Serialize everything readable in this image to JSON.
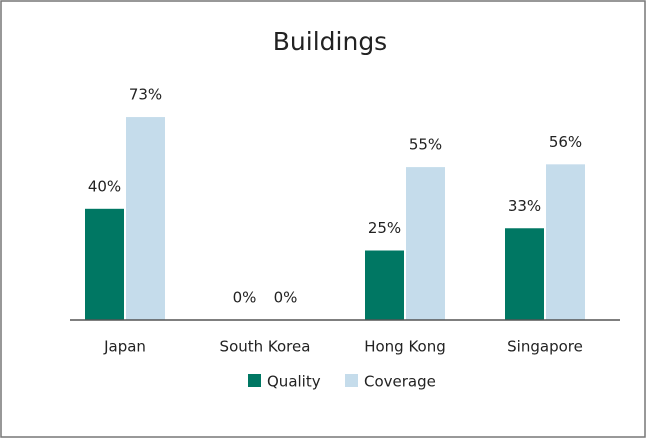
{
  "chart_data": {
    "type": "bar",
    "title": "Buildings",
    "categories": [
      "Japan",
      "South Korea",
      "Hong Kong",
      "Singapore"
    ],
    "series": [
      {
        "name": "Quality",
        "color": "#007763",
        "values": [
          40,
          0,
          25,
          33
        ],
        "value_labels": [
          "40%",
          "0%",
          "25%",
          "33%"
        ]
      },
      {
        "name": "Coverage",
        "color": "#c5dceb",
        "values": [
          73,
          0,
          55,
          56
        ],
        "value_labels": [
          "73%",
          "0%",
          "55%",
          "56%"
        ]
      }
    ],
    "legend": "bottom"
  }
}
